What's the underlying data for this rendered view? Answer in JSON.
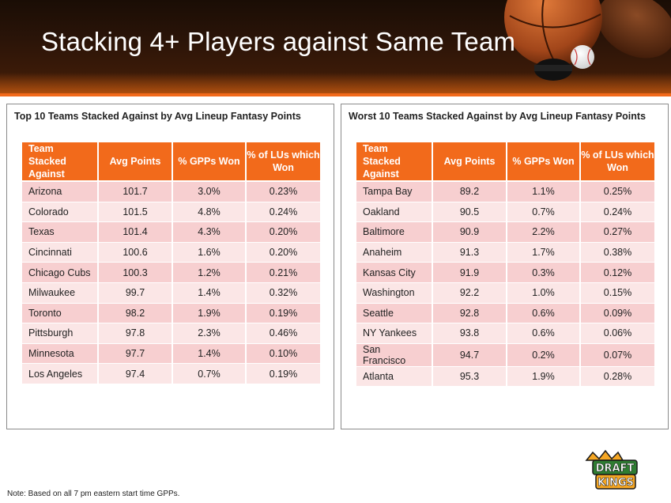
{
  "slide": {
    "title": "Stacking 4+ Players against Same Team",
    "note": "Note: Based on all 7 pm eastern start time GPPs.",
    "logo_text": "DRAFT KINGS"
  },
  "columns": [
    "Team Stacked Against",
    "Avg Points",
    "% GPPs Won",
    "% of LUs which Won"
  ],
  "colors": {
    "accent": "#f26a1b",
    "row_odd": "#f7cfd0",
    "row_even": "#fbe6e6"
  },
  "top_table": {
    "heading": "Top 10 Teams Stacked Against by Avg Lineup Fantasy Points",
    "rows": [
      [
        "Arizona",
        "101.7",
        "3.0%",
        "0.23%"
      ],
      [
        "Colorado",
        "101.5",
        "4.8%",
        "0.24%"
      ],
      [
        "Texas",
        "101.4",
        "4.3%",
        "0.20%"
      ],
      [
        "Cincinnati",
        "100.6",
        "1.6%",
        "0.20%"
      ],
      [
        "Chicago Cubs",
        "100.3",
        "1.2%",
        "0.21%"
      ],
      [
        "Milwaukee",
        "99.7",
        "1.4%",
        "0.32%"
      ],
      [
        "Toronto",
        "98.2",
        "1.9%",
        "0.19%"
      ],
      [
        "Pittsburgh",
        "97.8",
        "2.3%",
        "0.46%"
      ],
      [
        "Minnesota",
        "97.7",
        "1.4%",
        "0.10%"
      ],
      [
        "Los Angeles",
        "97.4",
        "0.7%",
        "0.19%"
      ]
    ]
  },
  "worst_table": {
    "heading": "Worst 10 Teams Stacked Against by Avg Lineup Fantasy Points",
    "rows": [
      [
        "Tampa Bay",
        "89.2",
        "1.1%",
        "0.25%"
      ],
      [
        "Oakland",
        "90.5",
        "0.7%",
        "0.24%"
      ],
      [
        "Baltimore",
        "90.9",
        "2.2%",
        "0.27%"
      ],
      [
        "Anaheim",
        "91.3",
        "1.7%",
        "0.38%"
      ],
      [
        "Kansas City",
        "91.9",
        "0.3%",
        "0.12%"
      ],
      [
        "Washington",
        "92.2",
        "1.0%",
        "0.15%"
      ],
      [
        "Seattle",
        "92.8",
        "0.6%",
        "0.09%"
      ],
      [
        "NY Yankees",
        "93.8",
        "0.6%",
        "0.06%"
      ],
      [
        "San Francisco",
        "94.7",
        "0.2%",
        "0.07%"
      ],
      [
        "Atlanta",
        "95.3",
        "1.9%",
        "0.28%"
      ]
    ]
  }
}
